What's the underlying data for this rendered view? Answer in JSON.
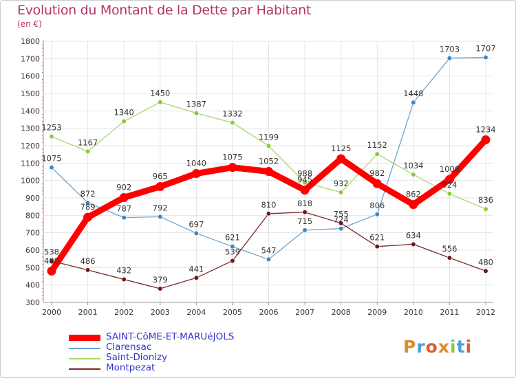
{
  "header": {
    "title": "Evolution du Montant de la Dette par Habitant",
    "unit": "(en €)"
  },
  "logo": {
    "text": "Proxiti",
    "colors": [
      "#e08c2a",
      "#4a9fd8",
      "#e05a2a",
      "#e08c2a",
      "#8cc83c",
      "#4a9fd8",
      "#e05a2a"
    ]
  },
  "chart_data": {
    "type": "line",
    "title": "Evolution du Montant de la Dette par Habitant",
    "ylabel": "(en €)",
    "xlabel": "",
    "ylim": [
      300,
      1800
    ],
    "yticks": [
      300,
      400,
      500,
      600,
      700,
      800,
      900,
      1000,
      1100,
      1200,
      1300,
      1400,
      1500,
      1600,
      1700,
      1800
    ],
    "categories": [
      "2000",
      "2001",
      "2002",
      "2003",
      "2004",
      "2005",
      "2006",
      "2007",
      "2008",
      "2009",
      "2010",
      "2011",
      "2012"
    ],
    "grid": true,
    "legend_position": "bottom-left",
    "series": [
      {
        "name": "SAINT-CôME-ET-MARUéJOLS",
        "color": "#ff0000",
        "marker": "#ff0000",
        "bold": true,
        "values": [
          480,
          789,
          902,
          965,
          1040,
          1075,
          1052,
          945,
          1125,
          982,
          862,
          1006,
          1234
        ],
        "labels": [
          "480",
          "789",
          "902",
          "965",
          "1040",
          "1075",
          "1052",
          "945",
          "1125",
          "982",
          "862",
          "1006",
          "1234"
        ]
      },
      {
        "name": "Clarensac",
        "color": "#6ba3d0",
        "marker": "#3a88c8",
        "bold": false,
        "values": [
          1075,
          872,
          787,
          792,
          697,
          621,
          547,
          715,
          724,
          806,
          1448,
          1703,
          1707
        ],
        "labels": [
          "1075",
          "872",
          "787",
          "792",
          "697",
          "621",
          "547",
          "715",
          "724",
          "806",
          "1448",
          "1703",
          "1707"
        ]
      },
      {
        "name": "Saint-Dionizy",
        "color": "#a6d86a",
        "marker": "#8cc83c",
        "bold": false,
        "values": [
          1253,
          1167,
          1340,
          1450,
          1387,
          1332,
          1199,
          988,
          932,
          1152,
          1034,
          924,
          836
        ],
        "labels": [
          "1253",
          "1167",
          "1340",
          "1450",
          "1387",
          "1332",
          "1199",
          "988",
          "932",
          "1152",
          "1034",
          "924",
          "836"
        ]
      },
      {
        "name": "Montpezat",
        "color": "#7a2a2a",
        "marker": "#6a1a1a",
        "bold": false,
        "values": [
          538,
          486,
          432,
          379,
          441,
          539,
          810,
          818,
          755,
          621,
          634,
          556,
          480
        ],
        "labels": [
          "538",
          "486",
          "432",
          "379",
          "441",
          "539",
          "810",
          "818",
          "755",
          "621",
          "634",
          "556",
          "480"
        ]
      }
    ]
  }
}
